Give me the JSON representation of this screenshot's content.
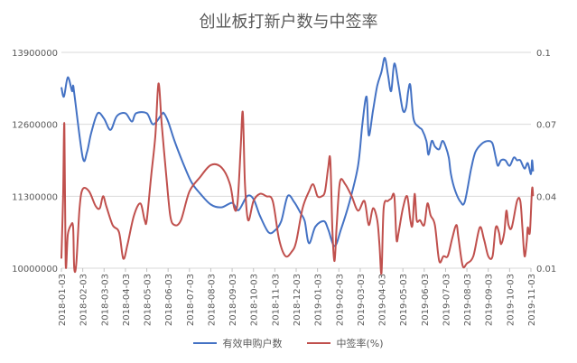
{
  "chart_data": {
    "type": "line",
    "title": "创业板打新户数与中签率",
    "y_left": {
      "ticks": [
        "10000000",
        "11300000",
        "12600000",
        "13900000"
      ],
      "min": 10000000,
      "max": 13900000
    },
    "y_right": {
      "ticks": [
        "0.01",
        "0.04",
        "0.07",
        "0.1"
      ],
      "min": 0.01,
      "max": 0.1
    },
    "x_ticks": [
      "2018-01-03",
      "2018-02-03",
      "2018-03-03",
      "2018-04-03",
      "2018-05-03",
      "2018-06-03",
      "2018-07-03",
      "2018-08-03",
      "2018-09-03",
      "2018-10-03",
      "2018-11-03",
      "2018-12-03",
      "2019-01-03",
      "2019-02-03",
      "2019-03-03",
      "2019-04-03",
      "2019-05-03",
      "2019-06-03",
      "2019-07-03",
      "2019-08-03",
      "2019-09-03",
      "2019-10-03",
      "2019-11-03"
    ],
    "series": [
      {
        "name": "有效申购户数",
        "color": "#4472C4",
        "axis": "left",
        "values": [
          [
            0,
            13270000
          ],
          [
            0.12,
            13100000
          ],
          [
            0.3,
            13450000
          ],
          [
            0.5,
            13200000
          ],
          [
            0.55,
            13300000
          ],
          [
            0.62,
            13100000
          ],
          [
            1.0,
            12000000
          ],
          [
            1.2,
            12100000
          ],
          [
            1.4,
            12450000
          ],
          [
            1.7,
            12800000
          ],
          [
            2.0,
            12700000
          ],
          [
            2.3,
            12500000
          ],
          [
            2.6,
            12750000
          ],
          [
            3.0,
            12800000
          ],
          [
            3.3,
            12650000
          ],
          [
            3.5,
            12800000
          ],
          [
            4.0,
            12800000
          ],
          [
            4.3,
            12600000
          ],
          [
            4.7,
            12780000
          ],
          [
            4.8,
            12800000
          ],
          [
            5.0,
            12650000
          ],
          [
            5.3,
            12300000
          ],
          [
            5.7,
            11900000
          ],
          [
            6.1,
            11550000
          ],
          [
            6.5,
            11350000
          ],
          [
            7.0,
            11150000
          ],
          [
            7.5,
            11100000
          ],
          [
            8.0,
            11180000
          ],
          [
            8.3,
            11050000
          ],
          [
            8.7,
            11300000
          ],
          [
            9.0,
            11250000
          ],
          [
            9.3,
            10950000
          ],
          [
            9.7,
            10650000
          ],
          [
            10.0,
            10680000
          ],
          [
            10.3,
            10850000
          ],
          [
            10.6,
            11300000
          ],
          [
            10.9,
            11200000
          ],
          [
            11.2,
            11000000
          ],
          [
            11.4,
            10850000
          ],
          [
            11.6,
            10450000
          ],
          [
            11.9,
            10750000
          ],
          [
            12.3,
            10850000
          ],
          [
            12.5,
            10700000
          ],
          [
            12.8,
            10400000
          ],
          [
            13.1,
            10700000
          ],
          [
            13.5,
            11200000
          ],
          [
            13.9,
            11850000
          ],
          [
            14.1,
            12600000
          ],
          [
            14.3,
            13100000
          ],
          [
            14.4,
            12400000
          ],
          [
            14.6,
            12850000
          ],
          [
            14.8,
            13300000
          ],
          [
            15.0,
            13550000
          ],
          [
            15.15,
            13800000
          ],
          [
            15.3,
            13500000
          ],
          [
            15.45,
            13200000
          ],
          [
            15.6,
            13700000
          ],
          [
            15.8,
            13300000
          ],
          [
            16.0,
            12850000
          ],
          [
            16.15,
            12900000
          ],
          [
            16.25,
            13200000
          ],
          [
            16.35,
            13300000
          ],
          [
            16.5,
            12700000
          ],
          [
            16.75,
            12550000
          ],
          [
            16.9,
            12500000
          ],
          [
            17.1,
            12300000
          ],
          [
            17.2,
            12050000
          ],
          [
            17.35,
            12300000
          ],
          [
            17.5,
            12200000
          ],
          [
            17.7,
            12150000
          ],
          [
            17.85,
            12300000
          ],
          [
            18.0,
            12200000
          ],
          [
            18.15,
            12000000
          ],
          [
            18.25,
            11700000
          ],
          [
            18.45,
            11400000
          ],
          [
            18.7,
            11200000
          ],
          [
            18.9,
            11200000
          ],
          [
            19.2,
            11800000
          ],
          [
            19.4,
            12100000
          ],
          [
            19.7,
            12250000
          ],
          [
            20.0,
            12300000
          ],
          [
            20.2,
            12250000
          ],
          [
            20.35,
            12000000
          ],
          [
            20.45,
            11850000
          ],
          [
            20.6,
            11950000
          ],
          [
            20.8,
            11950000
          ],
          [
            21.0,
            11850000
          ],
          [
            21.2,
            12000000
          ],
          [
            21.35,
            11950000
          ],
          [
            21.5,
            11950000
          ],
          [
            21.7,
            11800000
          ],
          [
            21.85,
            11900000
          ],
          [
            22.0,
            11700000
          ],
          [
            22.05,
            11950000
          ],
          [
            22.1,
            11750000
          ]
        ]
      },
      {
        "name": "中签率(%)",
        "color": "#C0504D",
        "axis": "right",
        "values": [
          [
            0,
            0.014
          ],
          [
            0.08,
            0.04
          ],
          [
            0.14,
            0.07
          ],
          [
            0.2,
            0.012
          ],
          [
            0.3,
            0.024
          ],
          [
            0.45,
            0.028
          ],
          [
            0.55,
            0.027
          ],
          [
            0.6,
            0.01
          ],
          [
            0.7,
            0.012
          ],
          [
            0.85,
            0.035
          ],
          [
            1.0,
            0.043
          ],
          [
            1.3,
            0.042
          ],
          [
            1.6,
            0.036
          ],
          [
            1.8,
            0.035
          ],
          [
            1.95,
            0.04
          ],
          [
            2.1,
            0.036
          ],
          [
            2.4,
            0.028
          ],
          [
            2.7,
            0.025
          ],
          [
            2.9,
            0.014
          ],
          [
            3.1,
            0.02
          ],
          [
            3.4,
            0.032
          ],
          [
            3.7,
            0.037
          ],
          [
            3.9,
            0.03
          ],
          [
            4.0,
            0.03
          ],
          [
            4.2,
            0.048
          ],
          [
            4.4,
            0.065
          ],
          [
            4.55,
            0.087
          ],
          [
            4.7,
            0.07
          ],
          [
            4.9,
            0.05
          ],
          [
            5.1,
            0.032
          ],
          [
            5.3,
            0.028
          ],
          [
            5.6,
            0.03
          ],
          [
            6.0,
            0.042
          ],
          [
            6.5,
            0.048
          ],
          [
            7.0,
            0.053
          ],
          [
            7.5,
            0.052
          ],
          [
            7.9,
            0.045
          ],
          [
            8.1,
            0.035
          ],
          [
            8.25,
            0.037
          ],
          [
            8.4,
            0.06
          ],
          [
            8.5,
            0.075
          ],
          [
            8.6,
            0.045
          ],
          [
            8.75,
            0.03
          ],
          [
            9.0,
            0.038
          ],
          [
            9.3,
            0.041
          ],
          [
            9.6,
            0.04
          ],
          [
            9.9,
            0.038
          ],
          [
            10.2,
            0.022
          ],
          [
            10.5,
            0.015
          ],
          [
            10.8,
            0.017
          ],
          [
            11.0,
            0.021
          ],
          [
            11.3,
            0.035
          ],
          [
            11.6,
            0.042
          ],
          [
            11.8,
            0.045
          ],
          [
            12.0,
            0.04
          ],
          [
            12.2,
            0.04
          ],
          [
            12.35,
            0.042
          ],
          [
            12.5,
            0.052
          ],
          [
            12.6,
            0.055
          ],
          [
            12.7,
            0.025
          ],
          [
            12.8,
            0.013
          ],
          [
            12.9,
            0.028
          ],
          [
            13.05,
            0.046
          ],
          [
            13.3,
            0.045
          ],
          [
            13.6,
            0.04
          ],
          [
            13.9,
            0.034
          ],
          [
            14.2,
            0.038
          ],
          [
            14.4,
            0.028
          ],
          [
            14.6,
            0.035
          ],
          [
            14.8,
            0.03
          ],
          [
            14.9,
            0.02
          ],
          [
            15.0,
            0.008
          ],
          [
            15.1,
            0.035
          ],
          [
            15.3,
            0.038
          ],
          [
            15.45,
            0.039
          ],
          [
            15.6,
            0.04
          ],
          [
            15.7,
            0.022
          ],
          [
            15.8,
            0.025
          ],
          [
            16.0,
            0.035
          ],
          [
            16.2,
            0.04
          ],
          [
            16.35,
            0.03
          ],
          [
            16.45,
            0.028
          ],
          [
            16.55,
            0.041
          ],
          [
            16.65,
            0.03
          ],
          [
            16.8,
            0.03
          ],
          [
            17.0,
            0.028
          ],
          [
            17.15,
            0.037
          ],
          [
            17.3,
            0.032
          ],
          [
            17.5,
            0.028
          ],
          [
            17.7,
            0.013
          ],
          [
            17.9,
            0.015
          ],
          [
            18.1,
            0.015
          ],
          [
            18.3,
            0.022
          ],
          [
            18.5,
            0.028
          ],
          [
            18.6,
            0.023
          ],
          [
            18.8,
            0.011
          ],
          [
            19.0,
            0.012
          ],
          [
            19.3,
            0.015
          ],
          [
            19.6,
            0.027
          ],
          [
            19.8,
            0.022
          ],
          [
            20.0,
            0.015
          ],
          [
            20.2,
            0.015
          ],
          [
            20.35,
            0.027
          ],
          [
            20.5,
            0.025
          ],
          [
            20.6,
            0.02
          ],
          [
            20.75,
            0.025
          ],
          [
            20.85,
            0.034
          ],
          [
            20.95,
            0.028
          ],
          [
            21.1,
            0.027
          ],
          [
            21.35,
            0.038
          ],
          [
            21.5,
            0.038
          ],
          [
            21.6,
            0.027
          ],
          [
            21.7,
            0.015
          ],
          [
            21.8,
            0.021
          ],
          [
            21.85,
            0.027
          ],
          [
            21.95,
            0.025
          ],
          [
            22.05,
            0.043
          ],
          [
            22.1,
            0.04
          ]
        ]
      }
    ]
  }
}
